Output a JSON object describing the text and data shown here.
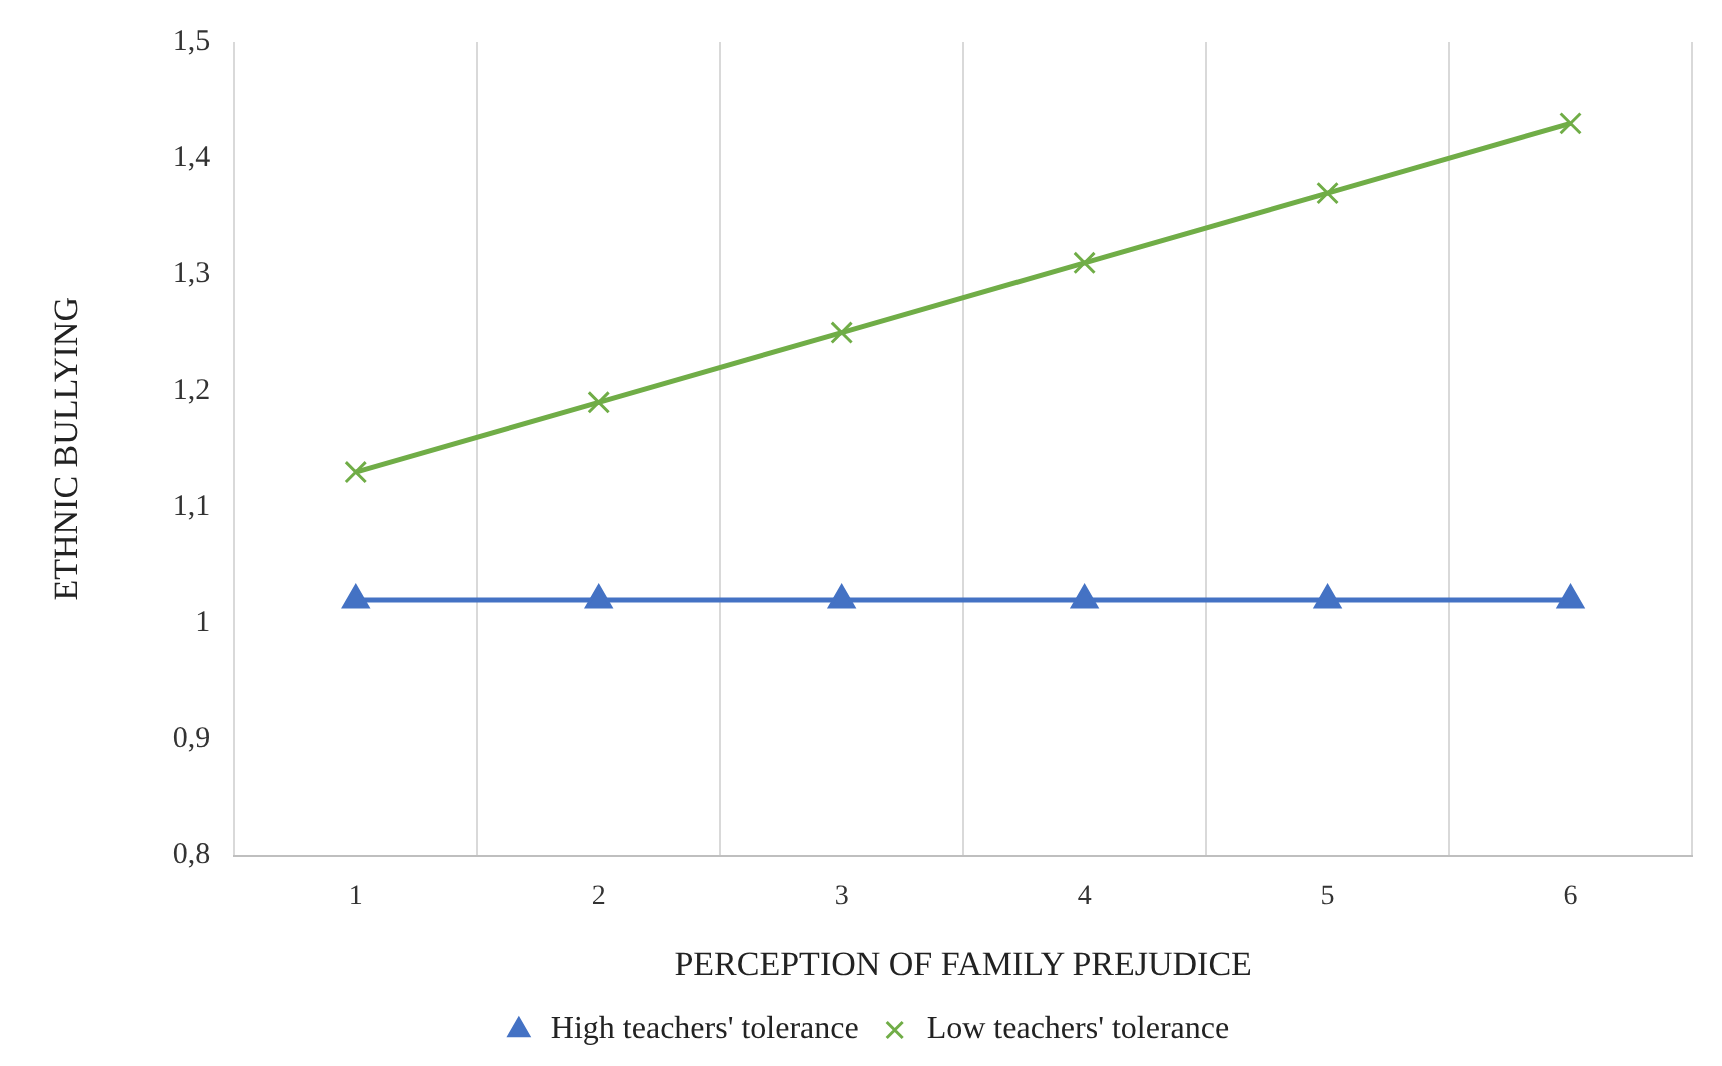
{
  "chart_data": {
    "type": "line",
    "xlabel": "PERCEPTION OF FAMILY PREJUDICE",
    "ylabel": "ETHNIC BULLYING",
    "categories": [
      "1",
      "2",
      "3",
      "4",
      "5",
      "6"
    ],
    "series": [
      {
        "name": "High teachers' tolerance",
        "color": "#4472c4",
        "marker": "triangle",
        "values": [
          1.02,
          1.02,
          1.02,
          1.02,
          1.02,
          1.02
        ]
      },
      {
        "name": "Low teachers' tolerance",
        "color": "#70ad47",
        "marker": "cross",
        "values": [
          1.13,
          1.19,
          1.25,
          1.31,
          1.37,
          1.43
        ]
      }
    ],
    "ylim": [
      0.8,
      1.5
    ],
    "yticks": [
      {
        "value": 0.8,
        "label": "0,8"
      },
      {
        "value": 0.9,
        "label": "0,9"
      },
      1,
      {
        "value": 1.1,
        "label": "1,1"
      },
      {
        "value": 1.2,
        "label": "1,2"
      },
      {
        "value": 1.3,
        "label": "1,3"
      },
      {
        "value": 1.4,
        "label": "1,4"
      },
      {
        "value": 1.5,
        "label": "1,5"
      }
    ],
    "grid": "x",
    "legend": "bottom",
    "line_style": "solid"
  }
}
